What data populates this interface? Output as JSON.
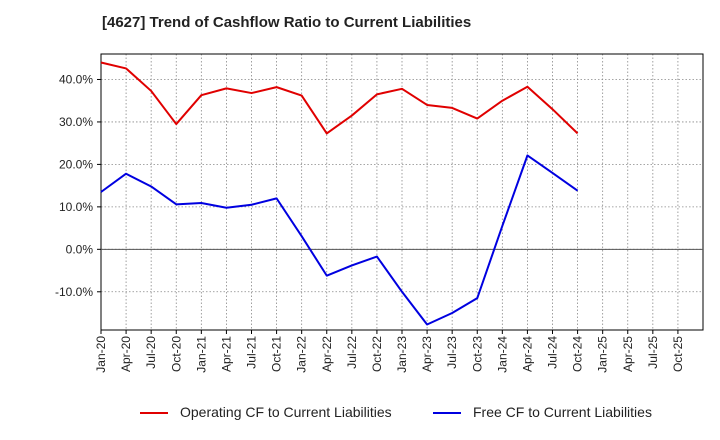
{
  "chart_data": {
    "type": "line",
    "title": "[4627]  Trend of Cashflow Ratio to Current Liabilities",
    "xlabel": "",
    "ylabel": "",
    "categories": [
      "Jan-20",
      "Apr-20",
      "Jul-20",
      "Oct-20",
      "Jan-21",
      "Apr-21",
      "Jul-21",
      "Oct-21",
      "Jan-22",
      "Apr-22",
      "Jul-22",
      "Oct-22",
      "Jan-23",
      "Apr-23",
      "Jul-23",
      "Oct-23",
      "Jan-24",
      "Apr-24",
      "Jul-24",
      "Oct-24",
      "Jan-25",
      "Apr-25",
      "Jul-25",
      "Oct-25"
    ],
    "ylim": [
      -19,
      46
    ],
    "yticks": [
      -10,
      0,
      10,
      20,
      30,
      40
    ],
    "ytick_labels": [
      "-10.0%",
      "0.0%",
      "10.0%",
      "20.0%",
      "30.0%",
      "40.0%"
    ],
    "grid": true,
    "legend_position": "bottom",
    "series": [
      {
        "name": "Operating CF to Current Liabilities",
        "color": "#e00000",
        "values": [
          44.0,
          42.6,
          37.3,
          29.5,
          36.3,
          37.9,
          36.8,
          38.2,
          36.2,
          27.3,
          31.5,
          36.5,
          37.8,
          34.0,
          33.3,
          30.8,
          35.0,
          38.3,
          33.0,
          27.3,
          null,
          null,
          null,
          null
        ]
      },
      {
        "name": "Free CF to Current Liabilities",
        "color": "#0000e0",
        "values": [
          13.5,
          17.8,
          14.8,
          10.6,
          10.9,
          9.8,
          10.5,
          12.0,
          3.1,
          -6.2,
          -3.8,
          -1.7,
          -10.0,
          -17.7,
          -15.0,
          -11.5,
          5.5,
          22.1,
          18.0,
          13.8,
          null,
          null,
          null,
          null
        ]
      }
    ]
  }
}
